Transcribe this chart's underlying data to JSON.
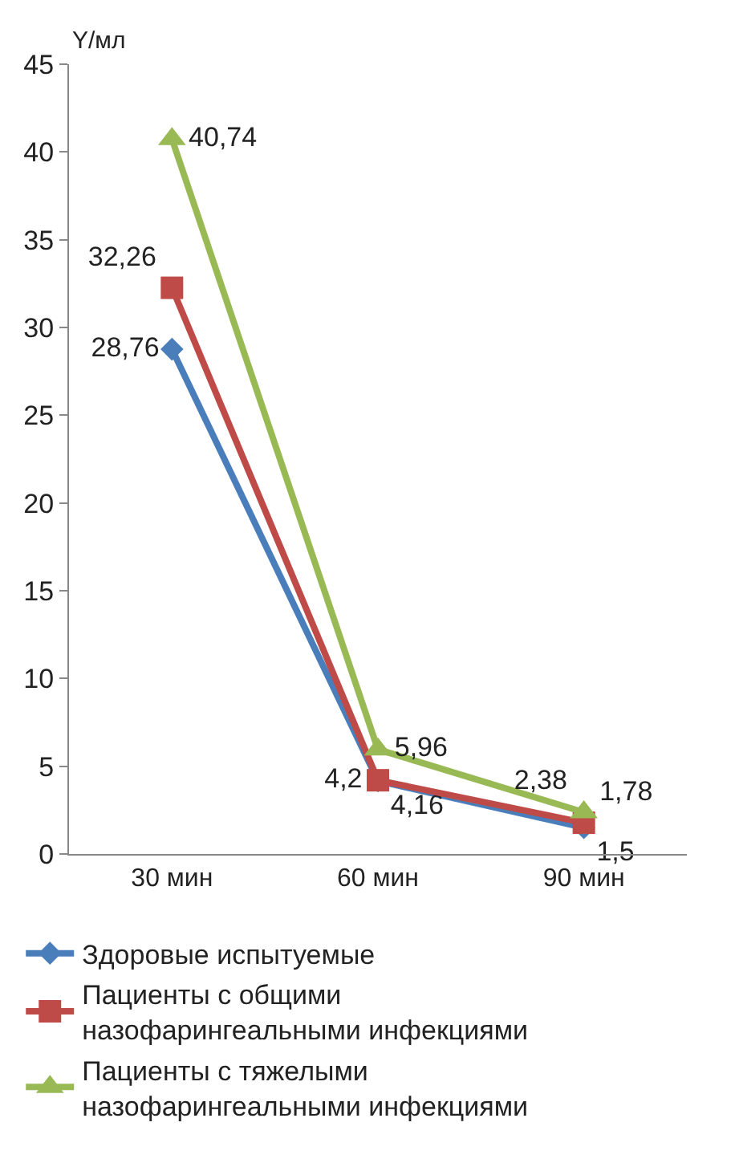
{
  "chart_data": {
    "type": "line",
    "ylabel": "Y/мл",
    "categories": [
      "30 мин",
      "60 мин",
      "90 мин"
    ],
    "series": [
      {
        "name": "Здоровые испытуемые",
        "color": "#4a7ebb",
        "marker": "diamond",
        "values": [
          28.76,
          4.16,
          1.5
        ],
        "value_labels": [
          "28,76",
          "4,16",
          "1,5"
        ]
      },
      {
        "name": "Пациенты с общими назофарингеальными инфекциями",
        "color": "#be4b48",
        "marker": "square",
        "values": [
          32.26,
          4.2,
          1.78
        ],
        "value_labels": [
          "32,26",
          "4,2",
          "1,78"
        ]
      },
      {
        "name": "Пациенты с тяжелыми назофарингеальными инфекциями",
        "color": "#98b954",
        "marker": "triangle",
        "values": [
          40.74,
          5.96,
          2.38
        ],
        "value_labels": [
          "40,74",
          "5,96",
          "2,38"
        ]
      }
    ],
    "ylim": [
      0,
      45
    ],
    "yticks": [
      0,
      5,
      10,
      15,
      20,
      25,
      30,
      35,
      40,
      45
    ],
    "legend": "bottom",
    "line_style": "solid"
  }
}
